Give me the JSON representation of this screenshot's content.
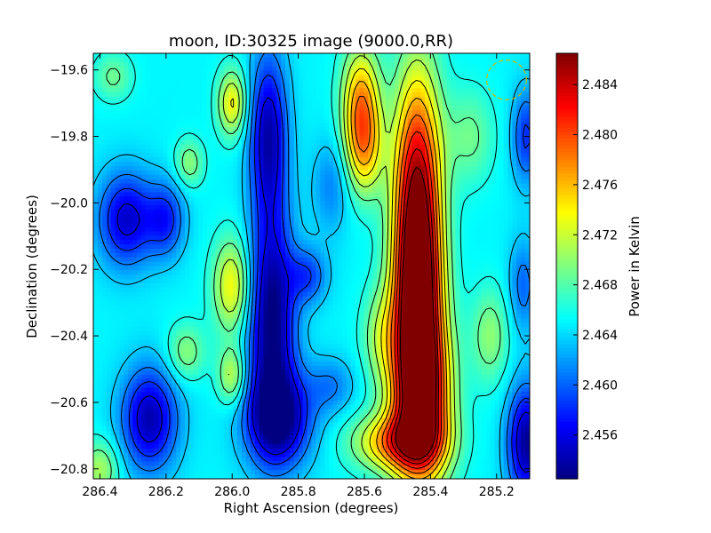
{
  "chart_data": {
    "type": "heatmap",
    "title": "moon, ID:30325 image (9000.0,RR)",
    "xlabel": "Right Ascension (degrees)",
    "ylabel": "Declination (degrees)",
    "xlim": [
      286.42,
      285.1
    ],
    "ylim": [
      -20.83,
      -19.55
    ],
    "x_reversed": true,
    "x_ticks": [
      286.4,
      286.2,
      286.0,
      285.8,
      285.6,
      285.4,
      285.2
    ],
    "x_tick_labels": [
      "286.4",
      "286.2",
      "286.0",
      "285.8",
      "285.6",
      "285.4",
      "285.2"
    ],
    "y_ticks": [
      -19.6,
      -19.8,
      -20.0,
      -20.2,
      -20.4,
      -20.6,
      -20.8
    ],
    "y_tick_labels": [
      "−19.6",
      "−19.8",
      "−20.0",
      "−20.2",
      "−20.4",
      "−20.6",
      "−20.8"
    ],
    "colorbar": {
      "label": "Power in Kelvin",
      "vmin": 2.4525,
      "vmax": 2.4865,
      "ticks": [
        2.456,
        2.46,
        2.464,
        2.468,
        2.472,
        2.476,
        2.48,
        2.484
      ],
      "tick_labels": [
        "2.456",
        "2.460",
        "2.464",
        "2.468",
        "2.472",
        "2.476",
        "2.480",
        "2.484"
      ],
      "colormap": "jet"
    },
    "contours": true,
    "beam_circle": {
      "ra": 285.17,
      "dec": -19.63,
      "radius_deg": 0.06,
      "color": "#d4b800"
    },
    "field_base": 2.465,
    "field_features": [
      {
        "ra": 285.44,
        "dec": -19.95,
        "amp": 0.019,
        "s_ra": 0.05,
        "s_dec": 0.25
      },
      {
        "ra": 285.44,
        "dec": -20.3,
        "amp": 0.02,
        "s_ra": 0.05,
        "s_dec": 0.2
      },
      {
        "ra": 285.43,
        "dec": -20.6,
        "amp": 0.022,
        "s_ra": 0.06,
        "s_dec": 0.17
      },
      {
        "ra": 285.5,
        "dec": -20.72,
        "amp": 0.012,
        "s_ra": 0.09,
        "s_dec": 0.06
      },
      {
        "ra": 285.61,
        "dec": -19.7,
        "amp": 0.012,
        "s_ra": 0.04,
        "s_dec": 0.12
      },
      {
        "ra": 285.6,
        "dec": -19.85,
        "amp": 0.008,
        "s_ra": 0.04,
        "s_dec": 0.1
      },
      {
        "ra": 285.89,
        "dec": -19.8,
        "amp": -0.011,
        "s_ra": 0.04,
        "s_dec": 0.18
      },
      {
        "ra": 285.88,
        "dec": -20.35,
        "amp": -0.013,
        "s_ra": 0.05,
        "s_dec": 0.22
      },
      {
        "ra": 285.86,
        "dec": -20.65,
        "amp": -0.012,
        "s_ra": 0.07,
        "s_dec": 0.1
      },
      {
        "ra": 285.77,
        "dec": -20.22,
        "amp": -0.006,
        "s_ra": 0.04,
        "s_dec": 0.06
      },
      {
        "ra": 286.32,
        "dec": -20.05,
        "amp": -0.01,
        "s_ra": 0.06,
        "s_dec": 0.1
      },
      {
        "ra": 286.25,
        "dec": -20.65,
        "amp": -0.011,
        "s_ra": 0.06,
        "s_dec": 0.11
      },
      {
        "ra": 286.2,
        "dec": -20.05,
        "amp": -0.007,
        "s_ra": 0.04,
        "s_dec": 0.08
      },
      {
        "ra": 285.11,
        "dec": -20.72,
        "amp": -0.012,
        "s_ra": 0.04,
        "s_dec": 0.12
      },
      {
        "ra": 285.11,
        "dec": -19.8,
        "amp": -0.007,
        "s_ra": 0.03,
        "s_dec": 0.1
      },
      {
        "ra": 285.12,
        "dec": -20.25,
        "amp": -0.005,
        "s_ra": 0.03,
        "s_dec": 0.1
      },
      {
        "ra": 286.0,
        "dec": -19.7,
        "amp": 0.009,
        "s_ra": 0.03,
        "s_dec": 0.07
      },
      {
        "ra": 286.0,
        "dec": -20.25,
        "amp": 0.009,
        "s_ra": 0.04,
        "s_dec": 0.1
      },
      {
        "ra": 286.0,
        "dec": -20.52,
        "amp": 0.007,
        "s_ra": 0.03,
        "s_dec": 0.06
      },
      {
        "ra": 286.13,
        "dec": -19.88,
        "amp": 0.005,
        "s_ra": 0.03,
        "s_dec": 0.05
      },
      {
        "ra": 286.14,
        "dec": -20.45,
        "amp": 0.005,
        "s_ra": 0.04,
        "s_dec": 0.06
      },
      {
        "ra": 285.7,
        "dec": -20.55,
        "amp": -0.004,
        "s_ra": 0.05,
        "s_dec": 0.06
      },
      {
        "ra": 285.55,
        "dec": -20.4,
        "amp": 0.005,
        "s_ra": 0.04,
        "s_dec": 0.1
      },
      {
        "ra": 285.28,
        "dec": -19.8,
        "amp": 0.004,
        "s_ra": 0.05,
        "s_dec": 0.1
      },
      {
        "ra": 285.22,
        "dec": -20.4,
        "amp": 0.005,
        "s_ra": 0.04,
        "s_dec": 0.1
      },
      {
        "ra": 286.4,
        "dec": -20.8,
        "amp": 0.006,
        "s_ra": 0.04,
        "s_dec": 0.06
      },
      {
        "ra": 286.36,
        "dec": -19.62,
        "amp": 0.004,
        "s_ra": 0.04,
        "s_dec": 0.05
      },
      {
        "ra": 285.7,
        "dec": -19.95,
        "amp": -0.004,
        "s_ra": 0.04,
        "s_dec": 0.1
      }
    ]
  }
}
